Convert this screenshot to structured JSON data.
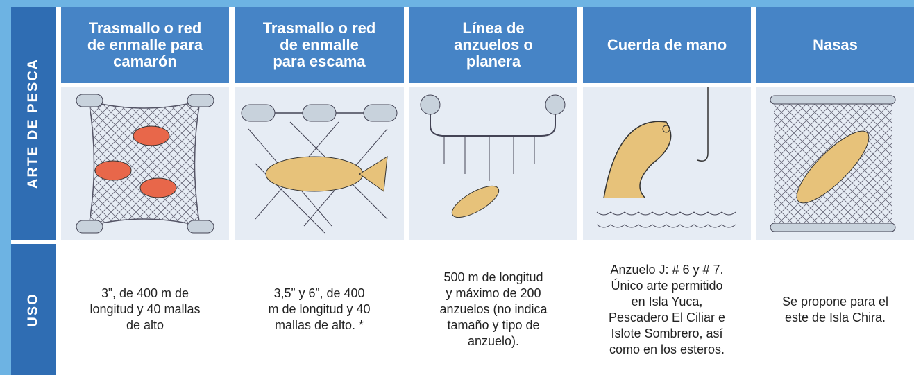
{
  "side_labels": [
    "ARTE DE PESCA",
    "USO"
  ],
  "columns": [
    {
      "header": [
        "Trasmallo o red",
        "de enmalle para",
        "camarón"
      ],
      "uso": [
        "3”, de 400 m de",
        "longitud y 40 mallas",
        "de alto"
      ]
    },
    {
      "header": [
        "Trasmallo o red",
        "de enmalle",
        "para escama"
      ],
      "uso": [
        "3,5” y 6”, de 400",
        "m de longitud y 40",
        "mallas de alto. *"
      ]
    },
    {
      "header": [
        "Línea de",
        "anzuelos o",
        "planera"
      ],
      "uso": [
        "500 m de longitud",
        "y máximo de 200",
        "anzuelos (no indica",
        "tamaño y tipo de",
        "anzuelo)."
      ]
    },
    {
      "header": [
        "Cuerda de mano"
      ],
      "uso": [
        "Anzuelo J: # 6 y # 7.",
        "Único arte permitido",
        "en Isla Yuca,",
        "Pescadero El Ciliar e",
        "Islote Sombrero, así",
        "como en los esteros."
      ]
    },
    {
      "header": [
        "Nasas"
      ],
      "uso": [
        "Se propone para el",
        "este de Isla Chira."
      ]
    }
  ]
}
